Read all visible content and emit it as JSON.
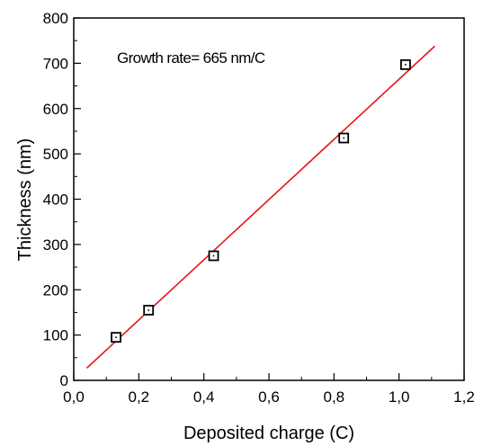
{
  "chart_data": {
    "type": "scatter",
    "xlabel": "Deposited charge (C)",
    "ylabel": "Thickness (nm)",
    "xlim": [
      0.0,
      1.2
    ],
    "ylim": [
      0,
      800
    ],
    "x_ticks": [
      "0,0",
      "0,2",
      "0,4",
      "0,6",
      "0,8",
      "1,0",
      "1,2"
    ],
    "y_ticks": [
      "0",
      "100",
      "200",
      "300",
      "400",
      "500",
      "600",
      "700",
      "800"
    ],
    "annotation": "Growth rate= 665 nm/C",
    "grid": false,
    "series": [
      {
        "marker": "open-square",
        "color": "#000000",
        "x": [
          0.13,
          0.23,
          0.43,
          0.83,
          1.02
        ],
        "y": [
          95,
          155,
          275,
          535,
          697
        ]
      }
    ],
    "fit_line": {
      "color": "#e8141a",
      "x": [
        0.04,
        1.11
      ],
      "y": [
        27,
        738
      ]
    }
  }
}
